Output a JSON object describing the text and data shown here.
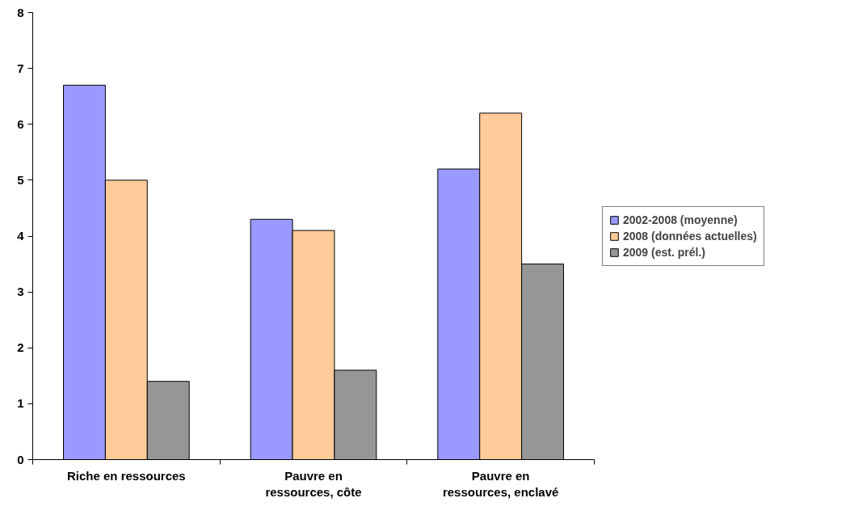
{
  "chart_data": {
    "type": "bar",
    "categories": [
      "Riche en ressources",
      "Pauvre en ressources, côte",
      "Pauvre en ressources, enclavé"
    ],
    "series": [
      {
        "name": "2002-2008 (moyenne)",
        "color": "#9999ff",
        "values": [
          6.7,
          4.3,
          5.2
        ]
      },
      {
        "name": "2008 (données actuelles)",
        "color": "#ffcc99",
        "values": [
          5.0,
          4.1,
          6.2
        ]
      },
      {
        "name": "2009 (est. prél.)",
        "color": "#969696",
        "values": [
          1.4,
          1.6,
          3.5
        ]
      }
    ],
    "ylim": [
      0,
      8
    ],
    "yticks": [
      0,
      1,
      2,
      3,
      4,
      5,
      6,
      7,
      8
    ],
    "grid": false,
    "legend": "right"
  }
}
